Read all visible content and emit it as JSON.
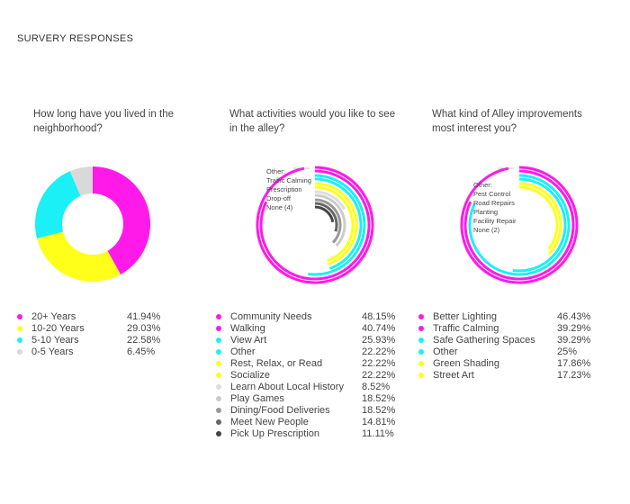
{
  "page": {
    "title": "SURVERY RESPONSES"
  },
  "chart_data": [
    {
      "type": "pie",
      "title": "How long have you lived in the neighborhood?",
      "categories": [
        "20+ Years",
        "10-20 Years",
        "5-10 Years",
        "0-5 Years"
      ],
      "values": [
        41.94,
        29.03,
        22.58,
        6.45
      ],
      "value_labels": [
        "41.94%",
        "29.03%",
        "22.58%",
        "6.45%"
      ],
      "colors": [
        "#ff1aea",
        "#ffff1a",
        "#1af0f5",
        "#d9d9d9"
      ],
      "style": "donut",
      "legend": "bottom"
    },
    {
      "type": "radial-bar",
      "title": "What activities would you like to see in the alley?",
      "categories": [
        "Community Needs",
        "Walking",
        "View Art",
        "Other",
        "Rest, Relax, or Read",
        "Socialize",
        "Learn About Local History",
        "Play Games",
        "Dining/Food Deliveries",
        "Meet New People",
        "Pick Up Prescription"
      ],
      "values": [
        48.15,
        40.74,
        25.93,
        22.22,
        22.22,
        22.22,
        8.52,
        18.52,
        18.52,
        14.81,
        11.11
      ],
      "value_labels": [
        "48.15%",
        "40.74%",
        "25.93%",
        "22.22%",
        "22.22%",
        "22.22%",
        "8.52%",
        "18.52%",
        "18.52%",
        "14.81%",
        "11.11%"
      ],
      "colors": [
        "#ff1aea",
        "#ff1aea",
        "#1af0f5",
        "#1af0f5",
        "#ffff1a",
        "#ffff1a",
        "#dddddd",
        "#cccccc",
        "#999999",
        "#666666",
        "#444444"
      ],
      "callouts": [
        "Other:",
        "Traffic Calming",
        "Prescription",
        "Drop-off",
        "None (4)"
      ],
      "legend": "bottom"
    },
    {
      "type": "radial-bar",
      "title": "What kind of Alley improvements most interest you?",
      "categories": [
        "Better Lighting",
        "Traffic Calming",
        "Safe Gathering Spaces",
        "Other",
        "Green Shading",
        "Street Art"
      ],
      "values": [
        46.43,
        39.29,
        39.29,
        25,
        17.86,
        17.23
      ],
      "value_labels": [
        "46.43%",
        "39.29%",
        "39.29%",
        "25%",
        "17.86%",
        "17.23%"
      ],
      "colors": [
        "#ff1aea",
        "#ff1aea",
        "#1af0f5",
        "#1af0f5",
        "#ffff1a",
        "#ffff1a"
      ],
      "callouts": [
        "Other:",
        "Pest Control",
        "Road Repairs",
        "Planting",
        "Facility Repair",
        "None (2)"
      ],
      "legend": "bottom"
    }
  ]
}
